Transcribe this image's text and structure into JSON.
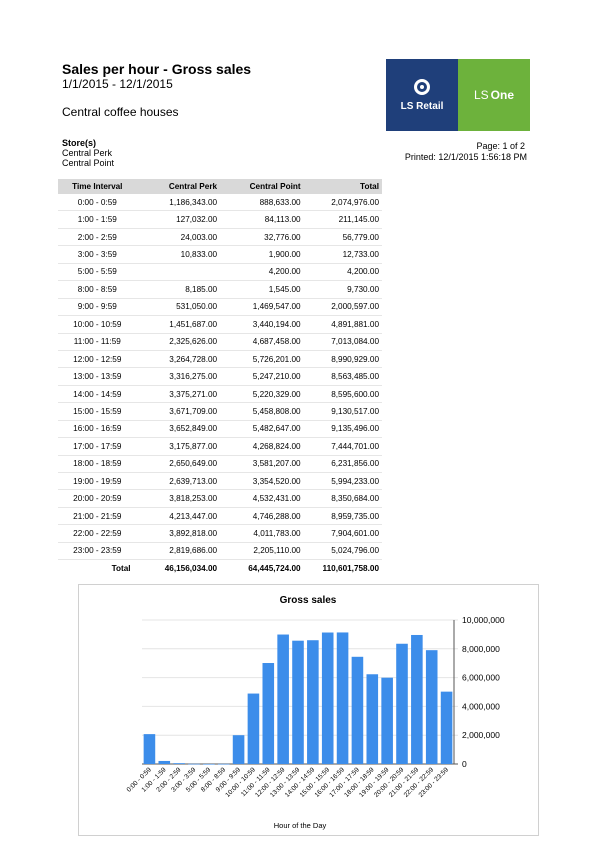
{
  "header": {
    "title": "Sales per hour - Gross sales",
    "date_range": "1/1/2015 - 12/1/2015",
    "company": "Central coffee houses",
    "stores_label": "Store(s)",
    "stores": [
      "Central Perk",
      "Central Point"
    ],
    "page": "Page: 1 of 2",
    "printed": "Printed: 12/1/2015 1:56:18 PM"
  },
  "logo": {
    "left_text": "LS Retail",
    "right_text_a": "LS",
    "right_text_b": "One",
    "colors": {
      "left": "#1f3f7a",
      "right": "#6db23c"
    }
  },
  "table": {
    "headers": [
      "Time Interval",
      "Central Perk",
      "Central Point",
      "Total"
    ],
    "rows": [
      [
        "0:00 - 0:59",
        "1,186,343.00",
        "888,633.00",
        "2,074,976.00"
      ],
      [
        "1:00 - 1:59",
        "127,032.00",
        "84,113.00",
        "211,145.00"
      ],
      [
        "2:00 - 2:59",
        "24,003.00",
        "32,776.00",
        "56,779.00"
      ],
      [
        "3:00 - 3:59",
        "10,833.00",
        "1,900.00",
        "12,733.00"
      ],
      [
        "5:00 - 5:59",
        "",
        "4,200.00",
        "4,200.00"
      ],
      [
        "8:00 - 8:59",
        "8,185.00",
        "1,545.00",
        "9,730.00"
      ],
      [
        "9:00 - 9:59",
        "531,050.00",
        "1,469,547.00",
        "2,000,597.00"
      ],
      [
        "10:00 - 10:59",
        "1,451,687.00",
        "3,440,194.00",
        "4,891,881.00"
      ],
      [
        "11:00 - 11:59",
        "2,325,626.00",
        "4,687,458.00",
        "7,013,084.00"
      ],
      [
        "12:00 - 12:59",
        "3,264,728.00",
        "5,726,201.00",
        "8,990,929.00"
      ],
      [
        "13:00 - 13:59",
        "3,316,275.00",
        "5,247,210.00",
        "8,563,485.00"
      ],
      [
        "14:00 - 14:59",
        "3,375,271.00",
        "5,220,329.00",
        "8,595,600.00"
      ],
      [
        "15:00 - 15:59",
        "3,671,709.00",
        "5,458,808.00",
        "9,130,517.00"
      ],
      [
        "16:00 - 16:59",
        "3,652,849.00",
        "5,482,647.00",
        "9,135,496.00"
      ],
      [
        "17:00 - 17:59",
        "3,175,877.00",
        "4,268,824.00",
        "7,444,701.00"
      ],
      [
        "18:00 - 18:59",
        "2,650,649.00",
        "3,581,207.00",
        "6,231,856.00"
      ],
      [
        "19:00 - 19:59",
        "2,639,713.00",
        "3,354,520.00",
        "5,994,233.00"
      ],
      [
        "20:00 - 20:59",
        "3,818,253.00",
        "4,532,431.00",
        "8,350,684.00"
      ],
      [
        "21:00 - 21:59",
        "4,213,447.00",
        "4,746,288.00",
        "8,959,735.00"
      ],
      [
        "22:00 - 22:59",
        "3,892,818.00",
        "4,011,783.00",
        "7,904,601.00"
      ],
      [
        "23:00 - 23:59",
        "2,819,686.00",
        "2,205,110.00",
        "5,024,796.00"
      ]
    ],
    "total": [
      "Total",
      "46,156,034.00",
      "64,445,724.00",
      "110,601,758.00"
    ]
  },
  "chart_data": {
    "type": "bar",
    "title": "Gross sales",
    "xlabel": "Hour of the Day",
    "ylabel": "",
    "ylim": [
      0,
      10000000
    ],
    "yticks": [
      "0",
      "2,000,000",
      "4,000,000",
      "6,000,000",
      "8,000,000",
      "10,000,000"
    ],
    "grid": true,
    "bar_color": "#3c8dea",
    "categories": [
      "0:00 - 0:59",
      "1:00 - 1:59",
      "2:00 - 2:59",
      "3:00 - 3:59",
      "5:00 - 5:59",
      "8:00 - 8:59",
      "9:00 - 9:59",
      "10:00 - 10:59",
      "11:00 - 11:59",
      "12:00 - 12:59",
      "13:00 - 13:59",
      "14:00 - 14:59",
      "15:00 - 15:59",
      "16:00 - 16:59",
      "17:00 - 17:59",
      "18:00 - 18:59",
      "19:00 - 19:59",
      "20:00 - 20:59",
      "21:00 - 21:59",
      "22:00 - 22:59",
      "23:00 - 23:59"
    ],
    "values": [
      2074976,
      211145,
      56779,
      12733,
      4200,
      9730,
      2000597,
      4891881,
      7013084,
      8990929,
      8563485,
      8595600,
      9130517,
      9135496,
      7444701,
      6231856,
      5994233,
      8350684,
      8959735,
      7904601,
      5024796
    ]
  }
}
